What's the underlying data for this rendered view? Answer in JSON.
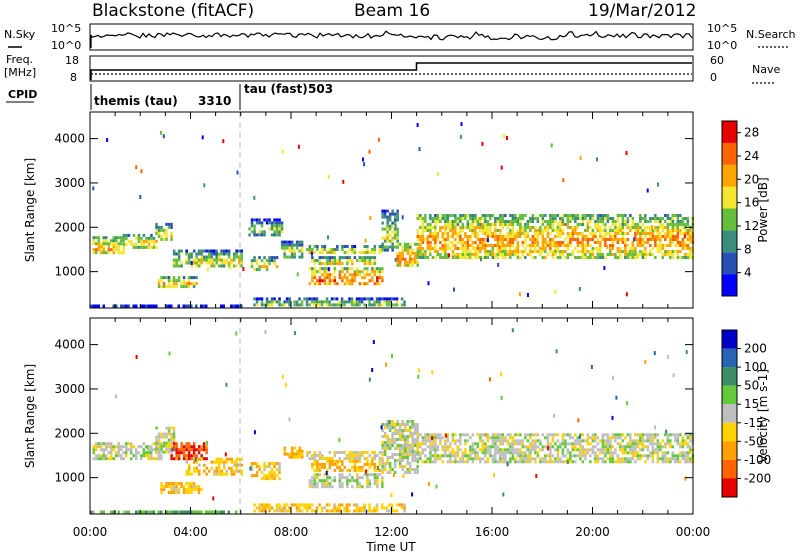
{
  "header": {
    "station": "Blackstone (fitACF)",
    "beam": "Beam 16",
    "date": "19/Mar/2012"
  },
  "status_panels": {
    "nsky_label": "N.Sky",
    "nsky_ticks": [
      "10^5",
      "10^0"
    ],
    "nsearch_label": "N.Search",
    "nsearch_ticks": [
      "10^5",
      "10^0"
    ],
    "freq_label": "Freq.",
    "freq_unit": "[MHz]",
    "freq_ticks": [
      "18",
      "8"
    ],
    "nave_label": "Nave",
    "nave_ticks": [
      "60",
      "0"
    ],
    "cpid_label": "CPID",
    "cpid_modes": [
      {
        "name": "themis (tau)",
        "code": "3310",
        "start_hour": 0,
        "end_hour": 6
      },
      {
        "name": "tau (fast)",
        "code": "503",
        "start_hour": 6,
        "end_hour": 24
      }
    ],
    "nave_step_hour": 13
  },
  "chart_data": [
    {
      "type": "heatmap",
      "quantity": "Power",
      "ylabel": "Slant Range [km]",
      "xlabel": "Time UT",
      "xlim": [
        0,
        24
      ],
      "ylim": [
        180,
        4600
      ],
      "yticks": [
        "1000",
        "2000",
        "3000",
        "4000"
      ],
      "xticks": [
        "00:00",
        "04:00",
        "08:00",
        "12:00",
        "16:00",
        "20:00",
        "00:00"
      ],
      "colorbar": {
        "label": "Power [dB]",
        "ticks": [
          "4",
          "8",
          "12",
          "16",
          "20",
          "24",
          "28"
        ],
        "range": [
          0,
          30
        ],
        "colors": [
          "#0000ff",
          "#2850b4",
          "#3c8c7c",
          "#64be3c",
          "#f5e632",
          "#ffa500",
          "#ff6400",
          "#e60000"
        ]
      },
      "echo_regions": [
        {
          "t0": 0.1,
          "t1": 1.3,
          "r0": 1400,
          "r1": 1800,
          "level": 0.55
        },
        {
          "t0": 1.3,
          "t1": 2.6,
          "r0": 1550,
          "r1": 1850,
          "level": 0.45
        },
        {
          "t0": 2.6,
          "t1": 3.2,
          "r0": 1700,
          "r1": 2100,
          "level": 0.35
        },
        {
          "t0": 3.3,
          "t1": 6.0,
          "r0": 1100,
          "r1": 1500,
          "level": 0.35
        },
        {
          "t0": 2.7,
          "t1": 4.2,
          "r0": 680,
          "r1": 900,
          "level": 0.5
        },
        {
          "t0": 6.4,
          "t1": 7.4,
          "r0": 1050,
          "r1": 1350,
          "level": 0.4
        },
        {
          "t0": 6.3,
          "t1": 7.6,
          "r0": 1850,
          "r1": 2200,
          "level": 0.2
        },
        {
          "t0": 7.6,
          "t1": 8.4,
          "r0": 1350,
          "r1": 1700,
          "level": 0.3
        },
        {
          "t0": 8.7,
          "t1": 11.6,
          "r0": 700,
          "r1": 1100,
          "level": 0.75
        },
        {
          "t0": 8.8,
          "t1": 11.3,
          "r0": 1150,
          "r1": 1350,
          "level": 0.45
        },
        {
          "t0": 8.5,
          "t1": 11.6,
          "r0": 1400,
          "r1": 1600,
          "level": 0.4
        },
        {
          "t0": 11.6,
          "t1": 12.2,
          "r0": 1500,
          "r1": 2400,
          "level": 0.3
        },
        {
          "t0": 12.2,
          "t1": 13.0,
          "r0": 1150,
          "r1": 1650,
          "level": 0.65
        },
        {
          "t0": 13.0,
          "t1": 24.0,
          "r0": 1350,
          "r1": 2300,
          "level": 0.6
        },
        {
          "t0": 6.5,
          "t1": 12.5,
          "r0": 240,
          "r1": 420,
          "level": 0.25
        },
        {
          "t0": 0.0,
          "t1": 6.0,
          "r0": 200,
          "r1": 260,
          "level": 0.15
        }
      ]
    },
    {
      "type": "heatmap",
      "quantity": "Velocity",
      "ylabel": "Slant Range [km]",
      "xlabel": "Time UT",
      "xlim": [
        0,
        24
      ],
      "ylim": [
        180,
        4600
      ],
      "yticks": [
        "1000",
        "2000",
        "3000",
        "4000"
      ],
      "xticks": [
        "00:00",
        "04:00",
        "08:00",
        "12:00",
        "16:00",
        "20:00",
        "00:00"
      ],
      "colorbar": {
        "label": "Velocity [m s-1]",
        "ticks": [
          "200",
          "100",
          "50",
          "15",
          "-15",
          "-50",
          "-100",
          "-200"
        ],
        "colors": [
          "#0000c8",
          "#2864b4",
          "#3c8c64",
          "#64c83c",
          "#bebebe",
          "#ffd200",
          "#ffa000",
          "#ff6400",
          "#e60000"
        ]
      },
      "echo_regions": [
        {
          "t0": 0.1,
          "t1": 2.8,
          "r0": 1400,
          "r1": 1800,
          "level": 0.5
        },
        {
          "t0": 2.6,
          "t1": 3.3,
          "r0": 1600,
          "r1": 2150,
          "level": 0.5
        },
        {
          "t0": 3.2,
          "t1": 4.6,
          "r0": 1450,
          "r1": 1800,
          "level": 0.9
        },
        {
          "t0": 3.8,
          "t1": 6.0,
          "r0": 1100,
          "r1": 1450,
          "level": 0.65
        },
        {
          "t0": 2.8,
          "t1": 4.4,
          "r0": 650,
          "r1": 900,
          "level": 0.65
        },
        {
          "t0": 6.4,
          "t1": 7.5,
          "r0": 1000,
          "r1": 1350,
          "level": 0.65
        },
        {
          "t0": 7.7,
          "t1": 8.4,
          "r0": 1450,
          "r1": 1700,
          "level": 0.7
        },
        {
          "t0": 8.7,
          "t1": 11.6,
          "r0": 800,
          "r1": 1100,
          "level": 0.5
        },
        {
          "t0": 8.8,
          "t1": 11.5,
          "r0": 1150,
          "r1": 1400,
          "level": 0.7
        },
        {
          "t0": 8.6,
          "t1": 11.6,
          "r0": 1420,
          "r1": 1600,
          "level": 0.55
        },
        {
          "t0": 11.6,
          "t1": 13.0,
          "r0": 1100,
          "r1": 2300,
          "level": 0.5
        },
        {
          "t0": 13.0,
          "t1": 24.0,
          "r0": 1350,
          "r1": 2000,
          "level": 0.5
        },
        {
          "t0": 6.5,
          "t1": 12.5,
          "r0": 220,
          "r1": 420,
          "level": 0.65
        },
        {
          "t0": 0.0,
          "t1": 6.0,
          "r0": 200,
          "r1": 260,
          "level": 0.35
        }
      ]
    }
  ]
}
